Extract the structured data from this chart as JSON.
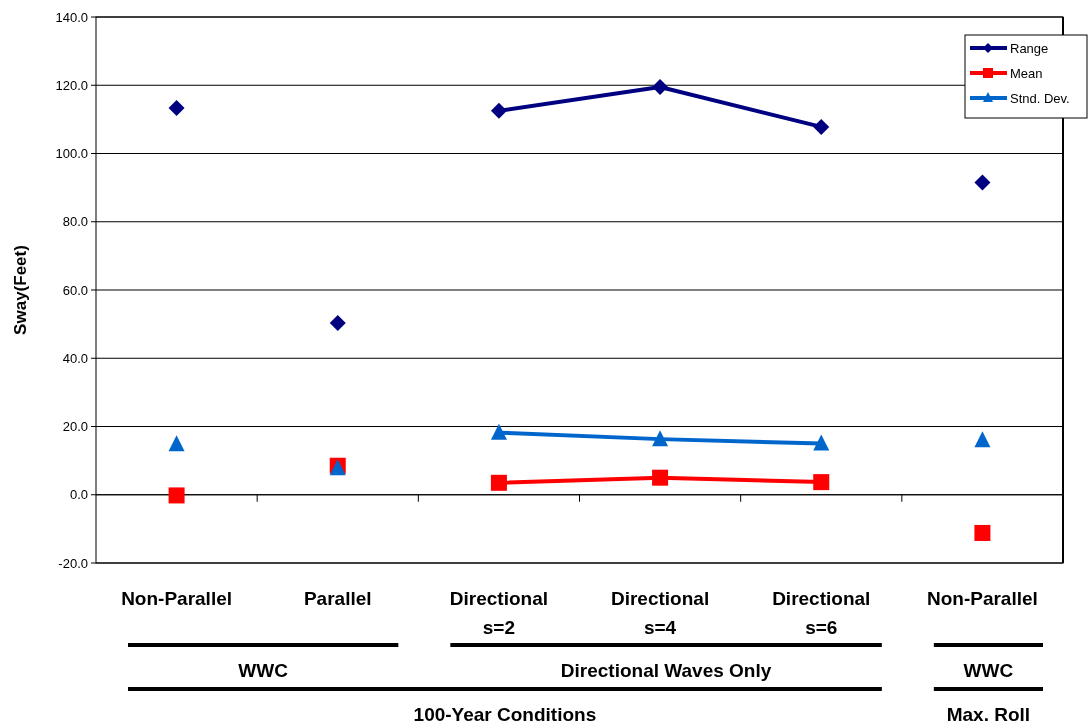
{
  "chart_data": {
    "type": "line",
    "ylabel": "Sway(Feet)",
    "categories": [
      "Non-Parallel",
      "Parallel",
      "Directional\ns=2",
      "Directional\ns=4",
      "Directional\ns=6",
      "Non-Parallel"
    ],
    "series": [
      {
        "name": "Range",
        "color": "#000080",
        "marker": "diamond",
        "values": [
          null,
          null,
          112.5,
          119.5,
          107.8,
          null
        ]
      },
      {
        "name": "Mean",
        "color": "#ff0000",
        "marker": "square",
        "values": [
          null,
          null,
          3.5,
          5.0,
          3.7,
          null
        ]
      },
      {
        "name": "Stnd. Dev.",
        "color": "#0066cc",
        "marker": "triangle",
        "values": [
          null,
          null,
          18.2,
          16.3,
          15.0,
          null
        ]
      },
      {
        "type": "scatter",
        "color": "#000080",
        "marker": "diamond",
        "values": [
          113.3,
          50.3,
          null,
          null,
          null,
          91.5
        ]
      },
      {
        "type": "scatter",
        "color": "#ff0000",
        "marker": "square",
        "values": [
          -0.2,
          8.5,
          null,
          null,
          null,
          -11.2
        ]
      },
      {
        "type": "scatter",
        "color": "#0066cc",
        "marker": "triangle",
        "values": [
          14.8,
          7.8,
          null,
          null,
          null,
          16.0
        ]
      }
    ],
    "ylim": [
      -20,
      140
    ],
    "yticks": [
      {
        "value": -20,
        "label": "-20.0"
      },
      {
        "value": 0,
        "label": "0.0"
      },
      {
        "value": 20,
        "label": "20.0"
      },
      {
        "value": 40,
        "label": "40.0"
      },
      {
        "value": 60,
        "label": "60.0"
      },
      {
        "value": 80,
        "label": "80.0"
      },
      {
        "value": 100,
        "label": "100.0"
      },
      {
        "value": 120,
        "label": "120.0"
      },
      {
        "value": 140,
        "label": "140.0"
      }
    ],
    "grid": "y",
    "legend": "top right",
    "annotations": [
      "WWC",
      "Directional Waves Only",
      "WWC",
      "100-Year Conditions",
      "Max. Roll"
    ]
  }
}
